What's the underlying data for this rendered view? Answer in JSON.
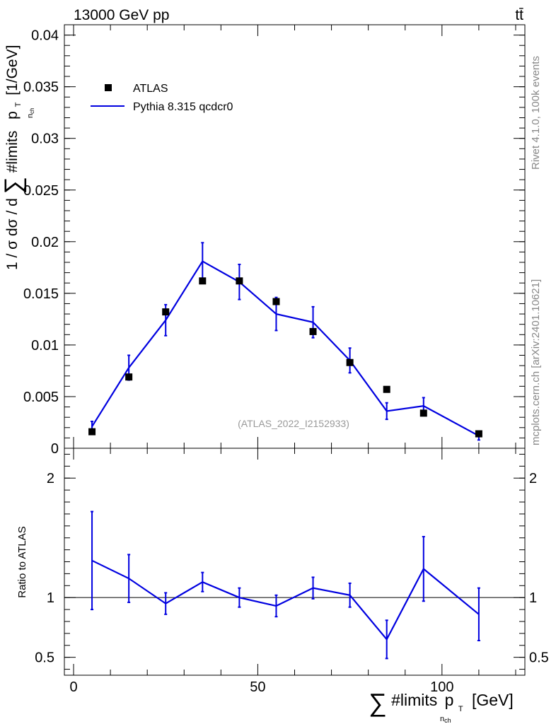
{
  "chart_data": {
    "type": "scatter+line",
    "header_left": "13000 GeV pp",
    "header_right": "tt̄",
    "side_label_top": "Rivet 4.1.0,  100k events",
    "side_label_bottom": "mcplots.cern.ch [arXiv:2401.10621]",
    "analysis_tag": "(ATLAS_2022_I2152933)",
    "main": {
      "ylabel_prefix": "1 / σ dσ / d",
      "ylabel_mid": "#limits",
      "ylabel_p": "p",
      "ylabel_p_sub": "T",
      "ylabel_sub": "n",
      "ylabel_sub2": "ch",
      "ylabel_unit": "[1/GeV]",
      "ylim": [
        0,
        0.041
      ],
      "yticks": [
        {
          "v": 0,
          "label": "0"
        },
        {
          "v": 0.005,
          "label": "0.005"
        },
        {
          "v": 0.01,
          "label": "0.01"
        },
        {
          "v": 0.015,
          "label": "0.015"
        },
        {
          "v": 0.02,
          "label": "0.02"
        },
        {
          "v": 0.025,
          "label": "0.025"
        },
        {
          "v": 0.03,
          "label": "0.03"
        },
        {
          "v": 0.035,
          "label": "0.035"
        },
        {
          "v": 0.04,
          "label": "0.04"
        }
      ]
    },
    "ratio": {
      "ylabel": "Ratio to ATLAS",
      "ylim": [
        0.35,
        2.25
      ],
      "yticks": [
        {
          "v": 0.5,
          "label": "0.5"
        },
        {
          "v": 1,
          "label": "1"
        },
        {
          "v": 2,
          "label": "2"
        }
      ]
    },
    "xaxis": {
      "xlim": [
        -2.5,
        122.5
      ],
      "xticks": [
        {
          "v": 0,
          "label": "0"
        },
        {
          "v": 50,
          "label": "50"
        },
        {
          "v": 100,
          "label": "100"
        }
      ],
      "xlabel_main": "#limits",
      "xlabel_p": "p",
      "xlabel_p_sub": "T",
      "xlabel_sub": "n",
      "xlabel_sub2": "ch",
      "xlabel_unit": "[GeV]"
    },
    "series": [
      {
        "name": "ATLAS",
        "style": "markers",
        "color": "#000000",
        "x": [
          5,
          15,
          25,
          35,
          45,
          55,
          65,
          75,
          85,
          95,
          110
        ],
        "y": [
          0.0016,
          0.0069,
          0.0132,
          0.0162,
          0.0162,
          0.0142,
          0.0113,
          0.0083,
          0.0057,
          0.0034,
          0.0014
        ]
      },
      {
        "name": "Pythia 8.315 qcdcr0",
        "style": "line",
        "color": "#0000e0",
        "x": [
          5,
          15,
          25,
          35,
          45,
          55,
          65,
          75,
          85,
          95,
          110
        ],
        "y": [
          0.0021,
          0.0078,
          0.0124,
          0.0181,
          0.0161,
          0.013,
          0.0122,
          0.0085,
          0.0036,
          0.0041,
          0.0012
        ],
        "yerr": [
          0.0005,
          0.0012,
          0.0015,
          0.0018,
          0.0017,
          0.0016,
          0.0015,
          0.0012,
          0.0008,
          0.0008,
          0.0004
        ],
        "ratio": [
          1.31,
          1.16,
          0.95,
          1.13,
          1.0,
          0.93,
          1.08,
          1.02,
          0.65,
          1.24,
          0.86
        ],
        "ratio_err": [
          0.41,
          0.2,
          0.09,
          0.08,
          0.08,
          0.09,
          0.09,
          0.1,
          0.16,
          0.27,
          0.22
        ]
      }
    ],
    "legend": [
      {
        "label": "ATLAS",
        "style": "marker"
      },
      {
        "label": "Pythia 8.315 qcdcr0",
        "style": "line"
      }
    ]
  }
}
